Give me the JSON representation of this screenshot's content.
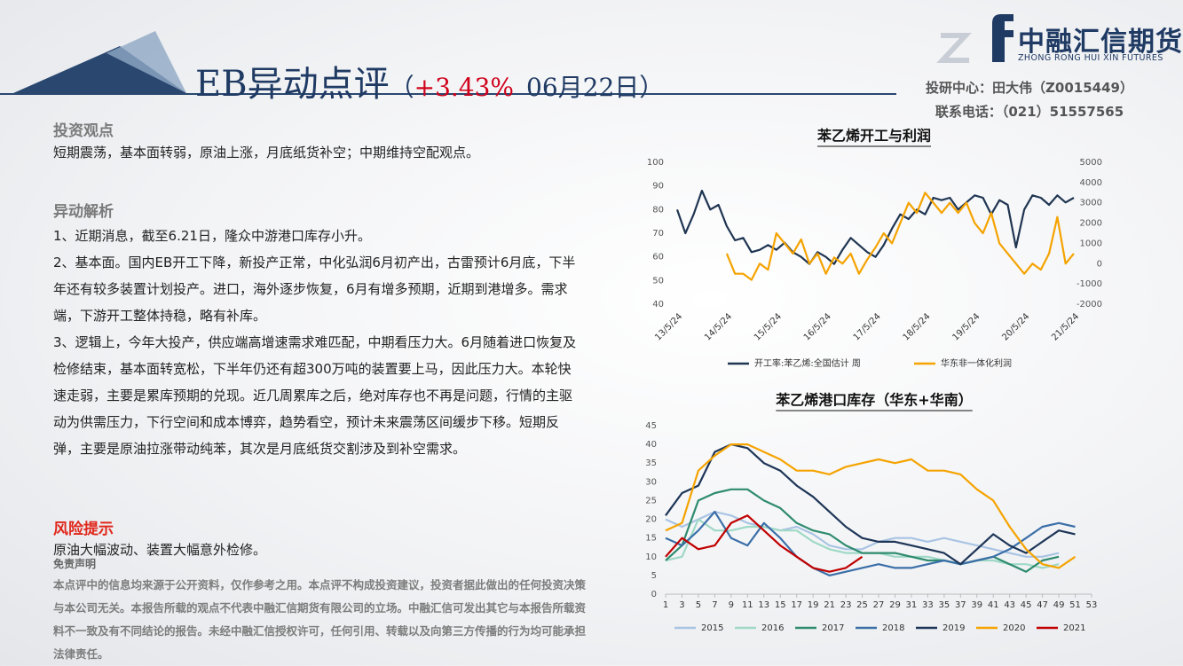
{
  "header": {
    "title": "EB异动点评",
    "paren_open": "（",
    "change": "+3.43%",
    "date": "06月22日",
    "paren_close": "）"
  },
  "logo": {
    "name": "中融汇信期货",
    "english": "ZHONG RONG HUI XIN FUTURES"
  },
  "analyst": {
    "center": "投研中心：田大伟（Z0015449）",
    "phone": "联系电话：（021）51557565"
  },
  "sections": [
    {
      "heading": "投资观点",
      "paragraphs": [
        "短期震荡，基本面转弱，原油上涨，月底纸货补空；中期维持空配观点。"
      ]
    },
    {
      "heading": "异动解析",
      "paragraphs": [
        "1、近期消息，截至6.21日，隆众中游港口库存小升。",
        "2、基本面。国内EB开工下降，新投产正常，中化弘润6月初产出，古雷预计6月底，下半年还有较多装置计划投产。进口，海外逐步恢复，6月有增多预期，近期到港增多。需求端，下游开工整体持稳，略有补库。",
        "3、逻辑上，今年大投产，供应端高增速需求难匹配，中期看压力大。6月随着进口恢复及检修结束，基本面转宽松，下半年仍还有超300万吨的装置要上马，因此压力大。本轮快速走弱，主要是累库预期的兑现。近几周累库之后，绝对库存也不再是问题，行情的主驱动为供需压力，下行空间和成本博弈，趋势看空，预计未来震荡区间缓步下移。短期反弹，主要是原油拉涨带动纯苯，其次是月底纸货交割涉及到补空需求。"
      ]
    },
    {
      "heading": "风险提示",
      "paragraphs": [
        "原油大幅波动、装置大幅意外检修。"
      ]
    }
  ],
  "disclaimer": {
    "heading": "免责声明",
    "text": "本点评中的信息均来源于公开资料，仅作参考之用。本点评不构成投资建议，投资者据此做出的任何投资决策与本公司无关。本报告所载的观点不代表中融汇信期货有限公司的立场。中融汇信可发出其它与本报告所载资料不一致及有不同结论的报告。未经中融汇信授权许可，任何引用、转载以及向第三方传播的行为均可能承担法律责任。"
  },
  "chart_data": [
    {
      "type": "line",
      "title": "苯乙烯开工与利润",
      "categories": [
        "13/5/24",
        null,
        null,
        null,
        null,
        null,
        "14/5/24",
        null,
        null,
        null,
        null,
        null,
        "15/5/24",
        null,
        null,
        null,
        null,
        null,
        "16/5/24",
        null,
        null,
        null,
        null,
        null,
        "17/5/24",
        null,
        null,
        null,
        null,
        null,
        "18/5/24",
        null,
        null,
        null,
        null,
        null,
        "19/5/24",
        null,
        null,
        null,
        null,
        null,
        "20/5/24",
        null,
        null,
        null,
        null,
        null,
        "21/5/24"
      ],
      "ylim": [
        40,
        100
      ],
      "yticks": [
        40,
        50,
        60,
        70,
        80,
        90,
        100
      ],
      "y2lim": [
        -2000,
        5000
      ],
      "y2ticks": [
        -2000,
        -1000,
        0,
        1000,
        2000,
        3000,
        4000,
        5000
      ],
      "legend": "bottom",
      "series": [
        {
          "name": "开工率:苯乙烯:全国估计 周",
          "color": "#1f3552",
          "values": [
            80,
            70,
            78,
            88,
            80,
            82,
            73,
            67,
            68,
            62,
            63,
            65,
            63,
            66,
            62,
            60,
            57,
            62,
            60,
            57,
            63,
            68,
            65,
            62,
            60,
            65,
            72,
            78,
            76,
            80,
            78,
            85,
            84,
            85,
            80,
            83,
            86,
            85,
            78,
            84,
            82,
            64,
            80,
            86,
            85,
            82,
            86,
            83,
            85
          ]
        },
        {
          "name": "华东非一体化利润",
          "color": "#f5a300",
          "axis": "y2",
          "values": [
            null,
            null,
            null,
            null,
            null,
            null,
            500,
            -500,
            -500,
            -800,
            0,
            -300,
            1500,
            1000,
            500,
            1200,
            0,
            500,
            -500,
            300,
            0,
            500,
            -500,
            200,
            800,
            1500,
            1000,
            2000,
            3000,
            2500,
            3500,
            3000,
            2500,
            3000,
            2500,
            3000,
            2000,
            1500,
            2500,
            1000,
            500,
            0,
            -500,
            0,
            -300,
            500,
            2300,
            0,
            500
          ]
        }
      ]
    },
    {
      "type": "line",
      "title": "苯乙烯港口库存（华东+华南）",
      "x": [
        1,
        3,
        5,
        7,
        9,
        11,
        13,
        15,
        17,
        19,
        21,
        23,
        25,
        27,
        29,
        31,
        33,
        35,
        37,
        39,
        41,
        43,
        45,
        47,
        49,
        51
      ],
      "xlim": [
        1,
        53
      ],
      "xticks": [
        1,
        3,
        5,
        7,
        9,
        11,
        13,
        15,
        17,
        19,
        21,
        23,
        25,
        27,
        29,
        31,
        33,
        35,
        37,
        39,
        41,
        43,
        45,
        47,
        49,
        51,
        53
      ],
      "ylim": [
        0,
        45
      ],
      "yticks": [
        0,
        5,
        10,
        15,
        20,
        25,
        30,
        35,
        40,
        45
      ],
      "legend": "bottom",
      "series": [
        {
          "name": "2015",
          "color": "#a9c4e3",
          "values": [
            20,
            18,
            20,
            22,
            21,
            19,
            18,
            17,
            18,
            16,
            13,
            12,
            12,
            14,
            15,
            15,
            14,
            15,
            14,
            13,
            12,
            11,
            10,
            10,
            11,
            null
          ]
        },
        {
          "name": "2016",
          "color": "#9fd9c6",
          "values": [
            9,
            10,
            20,
            17,
            17,
            18,
            18,
            17,
            17,
            14,
            12,
            11,
            11,
            11,
            10,
            10,
            10,
            9,
            8,
            9,
            9,
            8,
            8,
            7,
            8,
            null
          ]
        },
        {
          "name": "2017",
          "color": "#2e8b6e",
          "values": [
            9,
            13,
            25,
            27,
            28,
            28,
            25,
            23,
            19,
            17,
            16,
            13,
            11,
            11,
            11,
            10,
            9,
            9,
            8,
            9,
            10,
            8,
            6,
            9,
            10,
            null
          ]
        },
        {
          "name": "2018",
          "color": "#3b6fa8",
          "values": [
            15,
            13,
            17,
            22,
            15,
            13,
            19,
            15,
            10,
            7,
            5,
            6,
            7,
            8,
            7,
            7,
            8,
            9,
            8,
            9,
            10,
            12,
            15,
            18,
            19,
            18
          ]
        },
        {
          "name": "2019",
          "color": "#1d3557",
          "values": [
            21,
            27,
            29,
            38,
            40,
            39,
            35,
            33,
            29,
            26,
            22,
            18,
            15,
            14,
            14,
            13,
            12,
            11,
            8,
            12,
            16,
            13,
            11,
            14,
            17,
            16
          ]
        },
        {
          "name": "2020",
          "color": "#f5a300",
          "values": [
            17,
            19,
            33,
            37,
            40,
            40,
            38,
            36,
            33,
            33,
            32,
            34,
            35,
            36,
            35,
            36,
            33,
            33,
            32,
            28,
            25,
            18,
            12,
            8,
            7,
            10
          ]
        },
        {
          "name": "2021",
          "color": "#c00000",
          "values": [
            10,
            15,
            12,
            13,
            19,
            21,
            17,
            13,
            10,
            7,
            6,
            7,
            10,
            null,
            null,
            null,
            null,
            null,
            null,
            null,
            null,
            null,
            null,
            null,
            null,
            null
          ]
        }
      ]
    }
  ]
}
